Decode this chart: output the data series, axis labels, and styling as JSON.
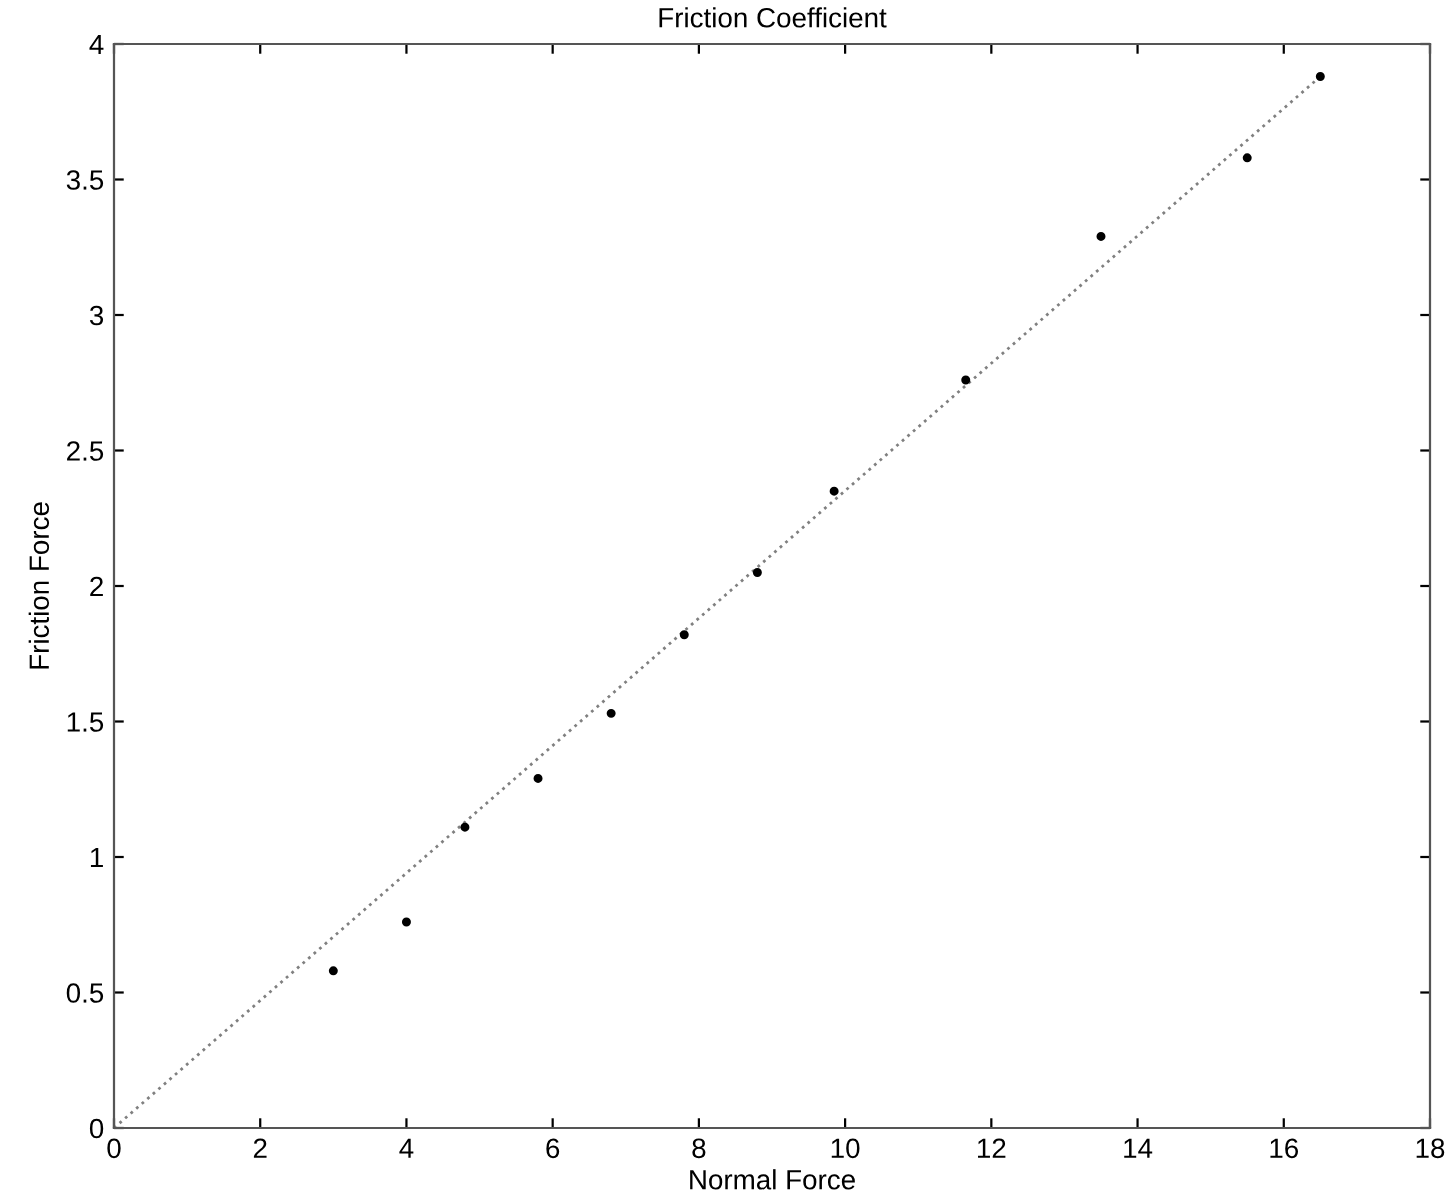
{
  "chart_data": {
    "type": "scatter",
    "title": "Friction Coefficient",
    "xlabel": "Normal Force",
    "ylabel": "Friction Force",
    "series": [
      {
        "color": "#000000",
        "marker": "circle",
        "x": [
          3,
          4,
          4.8,
          5.8,
          6.8,
          7.8,
          8.8,
          9.85,
          11.65,
          13.5,
          15.5,
          16.5
        ],
        "values": [
          0.58,
          0.76,
          1.11,
          1.29,
          1.53,
          1.82,
          2.05,
          2.35,
          2.76,
          3.29,
          3.58,
          3.88
        ]
      },
      {
        "type": "line",
        "color": "#808080",
        "line_style": "dotted",
        "marker": "none",
        "x": [
          0,
          16.5
        ],
        "values": [
          0,
          3.88
        ]
      }
    ],
    "xlim": [
      0,
      18
    ],
    "xticks": [
      0,
      2,
      4,
      6,
      8,
      10,
      12,
      14,
      16,
      18
    ],
    "ylim": [
      0,
      4
    ],
    "yticks": [
      0,
      0.5,
      1,
      1.5,
      2,
      2.5,
      3,
      3.5,
      4
    ],
    "grid": false
  }
}
